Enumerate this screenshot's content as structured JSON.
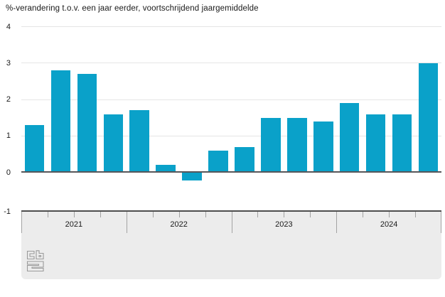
{
  "chart_data": {
    "type": "bar",
    "title": "%-verandering t.o.v. een jaar eerder, voortschrijdend jaargemiddelde",
    "groups": [
      "2021",
      "2022",
      "2023",
      "2024"
    ],
    "bars_per_group": 4,
    "values": [
      1.3,
      2.8,
      2.7,
      1.6,
      1.7,
      0.2,
      -0.2,
      0.6,
      0.7,
      1.5,
      1.5,
      1.4,
      1.9,
      1.6,
      1.6,
      3.0
    ],
    "ylim": [
      -1,
      4
    ],
    "yticks": [
      4,
      3,
      2,
      1,
      0,
      -1
    ],
    "grid": true,
    "legend": "none",
    "bar_color": "#0aa1c9",
    "zero_line_color": "#56565a",
    "gridline_color": "#e5e5e5",
    "axis_panel_color": "#ececec"
  },
  "footer": {
    "logo_name": "cbs-logo"
  }
}
